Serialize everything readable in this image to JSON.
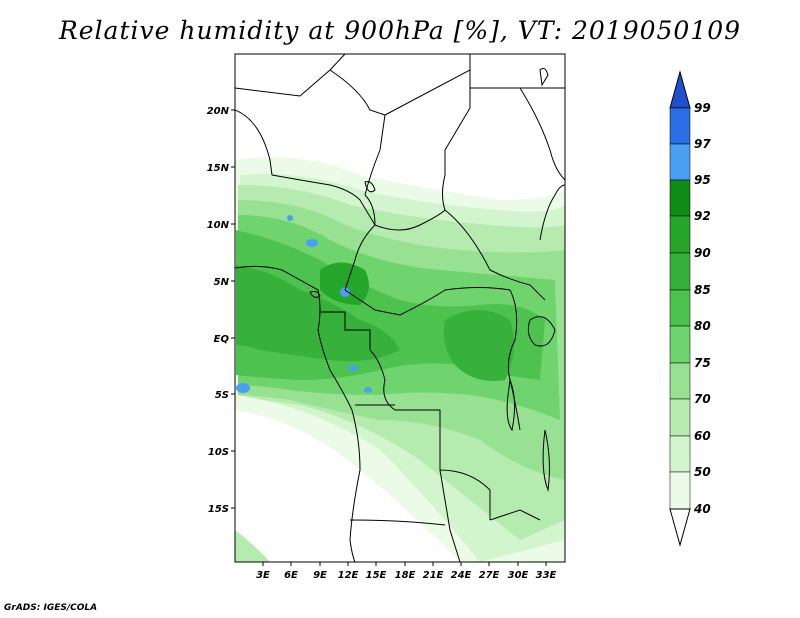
{
  "title": "Relative humidity at 900hPa [%], VT: 2019050109",
  "footer": "GrADS: IGES/COLA",
  "map": {
    "lon_range": [
      0,
      35
    ],
    "lat_range": [
      -20,
      24
    ],
    "x_ticks": [
      "3E",
      "6E",
      "9E",
      "12E",
      "15E",
      "18E",
      "21E",
      "24E",
      "27E",
      "30E",
      "33E"
    ],
    "y_ticks": [
      "20N",
      "15N",
      "10N",
      "5N",
      "EQ",
      "5S",
      "10S",
      "15S"
    ]
  },
  "colorbar": {
    "levels": [
      "99",
      "97",
      "95",
      "92",
      "90",
      "85",
      "80",
      "75",
      "70",
      "60",
      "50",
      "40"
    ],
    "colors": {
      "above_99": "#1f4fcf",
      "97_99": "#2a6ee6",
      "95_97": "#4a9ff2",
      "92_95": "#0f8c17",
      "90_92": "#25a52a",
      "85_90": "#37b13b",
      "80_85": "#4ec24f",
      "75_80": "#6fd46d",
      "70_75": "#98e192",
      "60_70": "#b6ebb0",
      "50_60": "#d2f5cd",
      "40_50": "#ebfbe8",
      "below_40": "#ffffff"
    }
  }
}
